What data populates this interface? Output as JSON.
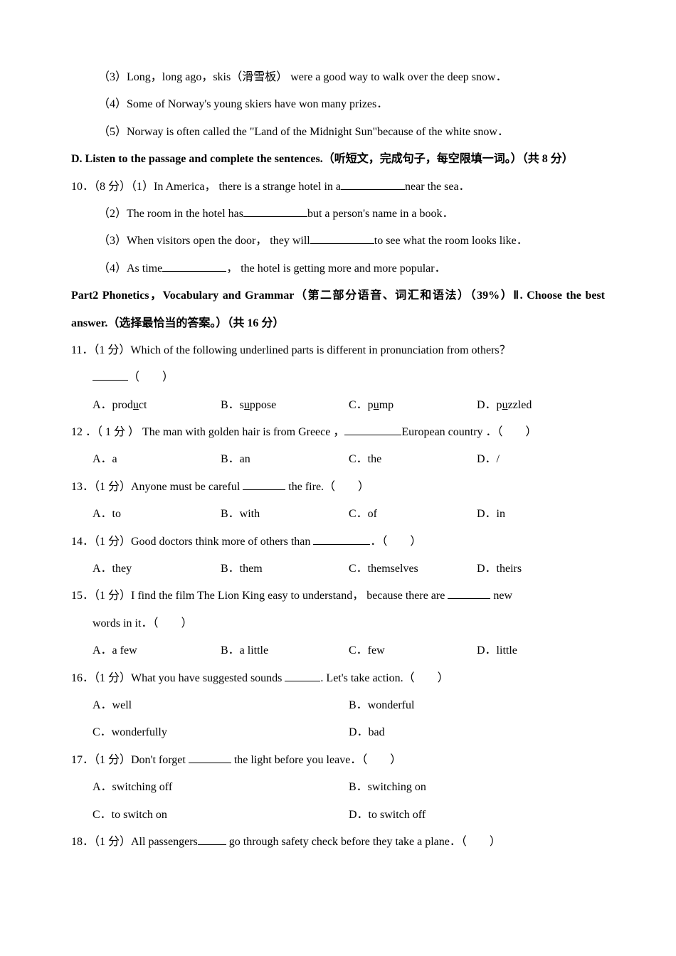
{
  "q3": "（3）Long，long ago，skis（滑雪板） were a good way to walk over the deep snow．",
  "q4": "（4）Some of Norway's young skiers have won many prizes．",
  "q5": "（5）Norway is often called the \"Land of the Midnight Sun\"because of the white snow．",
  "sectionD": "D. Listen to the passage and complete the sentences.（听短文，完成句子，每空限填一词。）（共 8 分）",
  "q10": {
    "p1a": "10．（8 分）（1）In America， there is a strange hotel in a",
    "p1b": "near the sea．",
    "p2a": "（2）The room in the hotel has",
    "p2b": "but a person's name in a book．",
    "p3a": "（3）When visitors open the door， they will",
    "p3b": "to see what the room looks like．",
    "p4a": "（4）As time",
    "p4b": "， the hotel is getting more and more popular．"
  },
  "part2": "Part2 Phonetics，Vocabulary and Grammar（第二部分语音、词汇和语法）（39%）Ⅱ. Choose the best answer.（选择最恰当的答案。）（共 16 分）",
  "q11": {
    "stem": "11．（1 分）Which of the following underlined parts is different in pronunciation from others？",
    "blank_paren": "（　　）",
    "a": "A．prod",
    "au": "u",
    "a2": "ct",
    "b": "B．s",
    "bu": "u",
    "b2": "ppose",
    "c": "C．p",
    "cu": "u",
    "c2": "mp",
    "d": "D．p",
    "du": "u",
    "d2": "zzled"
  },
  "q12": {
    "stem1": "12 ．（ 1 分 ） The man with golden hair is from Greece ，",
    "stem2": "European country ．（　　）",
    "a": "A．a",
    "b": "B．an",
    "c": "C．the",
    "d": "D．/"
  },
  "q13": {
    "stem1": "13．（1 分）Anyone must be careful ",
    "stem2": " the fire.（　　）",
    "a": "A．to",
    "b": "B．with",
    "c": "C．of",
    "d": "D．in"
  },
  "q14": {
    "stem1": "14．（1 分）Good doctors think more of others than ",
    "stem2": "．（　　）",
    "a": "A．they",
    "b": "B．them",
    "c": "C．themselves",
    "d": "D．theirs"
  },
  "q15": {
    "stem1": "15．（1 分）I find the film The Lion King easy to understand， because there are ",
    "stem2": " new",
    "stem3": "words in it．（　　）",
    "a": "A．a few",
    "b": "B．a little",
    "c": "C．few",
    "d": "D．little"
  },
  "q16": {
    "stem1": "16．（1 分）What you have suggested sounds ",
    "stem2": ". Let's take action.（　　）",
    "a": "A．well",
    "b": "B．wonderful",
    "c": "C．wonderfully",
    "d": "D．bad"
  },
  "q17": {
    "stem1": "17．（1 分）Don't forget ",
    "stem2": " the light before you leave．（　　）",
    "a": "A．switching off",
    "b": "B．switching on",
    "c": "C．to switch on",
    "d": "D．to switch off"
  },
  "q18": {
    "stem1": "18．（1 分）All passengers",
    "stem2": " go through safety check before they take a plane．（　　）"
  }
}
